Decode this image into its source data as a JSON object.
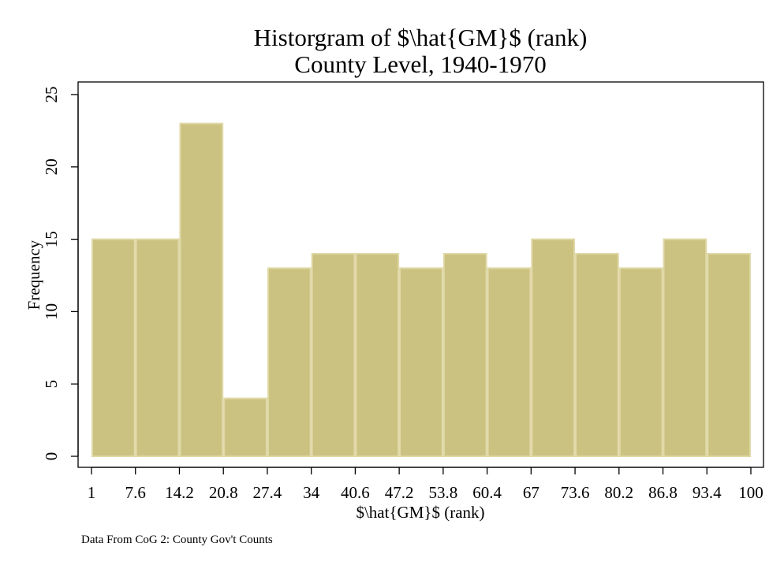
{
  "chart_data": {
    "type": "bar",
    "title": "Historgram of $\\hat{GM}$ (rank)",
    "subtitle": "County Level, 1940-1970",
    "xlabel": "$\\hat{GM}$ (rank)",
    "ylabel": "Frequency",
    "note": "Data From CoG 2: County Gov't Counts",
    "bin_edges": [
      1,
      7.6,
      14.2,
      20.8,
      27.4,
      34,
      40.6,
      47.2,
      53.8,
      60.4,
      67,
      73.6,
      80.2,
      86.8,
      93.4,
      100
    ],
    "x_tick_labels": [
      "1",
      "7.6",
      "14.2",
      "20.8",
      "27.4",
      "34",
      "40.6",
      "47.2",
      "53.8",
      "60.4",
      "67",
      "73.6",
      "80.2",
      "86.8",
      "93.4",
      "100"
    ],
    "values": [
      15,
      15,
      23,
      4,
      13,
      14,
      14,
      13,
      14,
      13,
      15,
      14,
      13,
      15,
      14
    ],
    "y_ticks": [
      0,
      5,
      10,
      15,
      20,
      25
    ],
    "xlim": [
      1,
      100
    ],
    "ylim": [
      0,
      25
    ],
    "grid": false,
    "bar_color": "#cbc282",
    "bar_edge_color": "#e0d8a6"
  }
}
